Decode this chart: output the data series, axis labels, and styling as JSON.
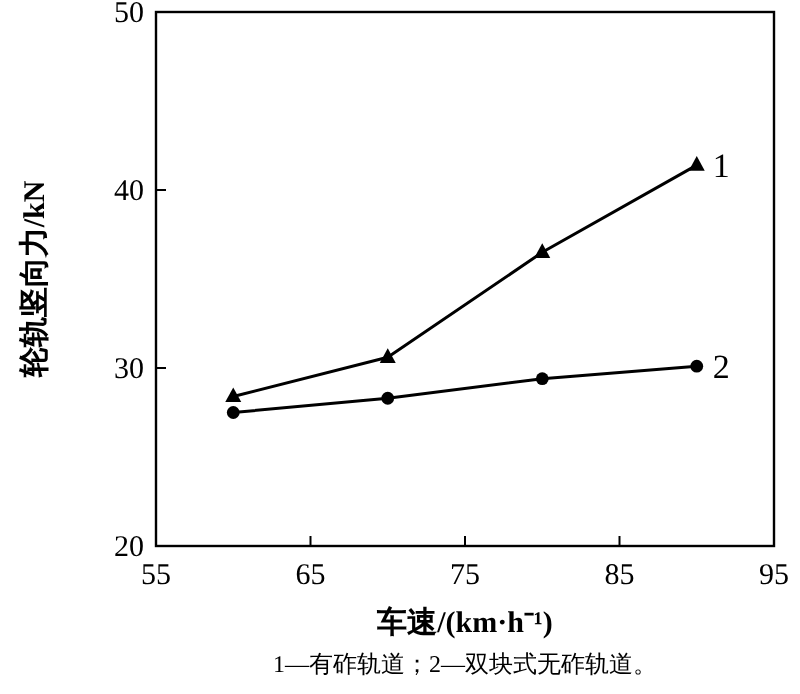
{
  "chart_data": {
    "type": "line",
    "xlabel": "车速/(km·h⁻¹)",
    "ylabel": "轮轨竖向力/kN",
    "annotations": [
      "1—有砟轨道；2—双块式无砟轨道。"
    ],
    "x": [
      60,
      70,
      80,
      90
    ],
    "series": [
      {
        "name": "1",
        "color": "#000000",
        "marker": "triangle",
        "values": [
          28.4,
          30.6,
          36.5,
          41.4
        ]
      },
      {
        "name": "2",
        "color": "#000000",
        "marker": "circle",
        "values": [
          27.5,
          28.3,
          29.4,
          30.1
        ]
      }
    ],
    "xlim": [
      55,
      95
    ],
    "xticks": [
      55,
      65,
      75,
      85,
      95
    ],
    "ylim": [
      20,
      50
    ],
    "yticks": [
      20,
      30,
      40,
      50
    ],
    "grid": false,
    "line_style": "solid"
  }
}
